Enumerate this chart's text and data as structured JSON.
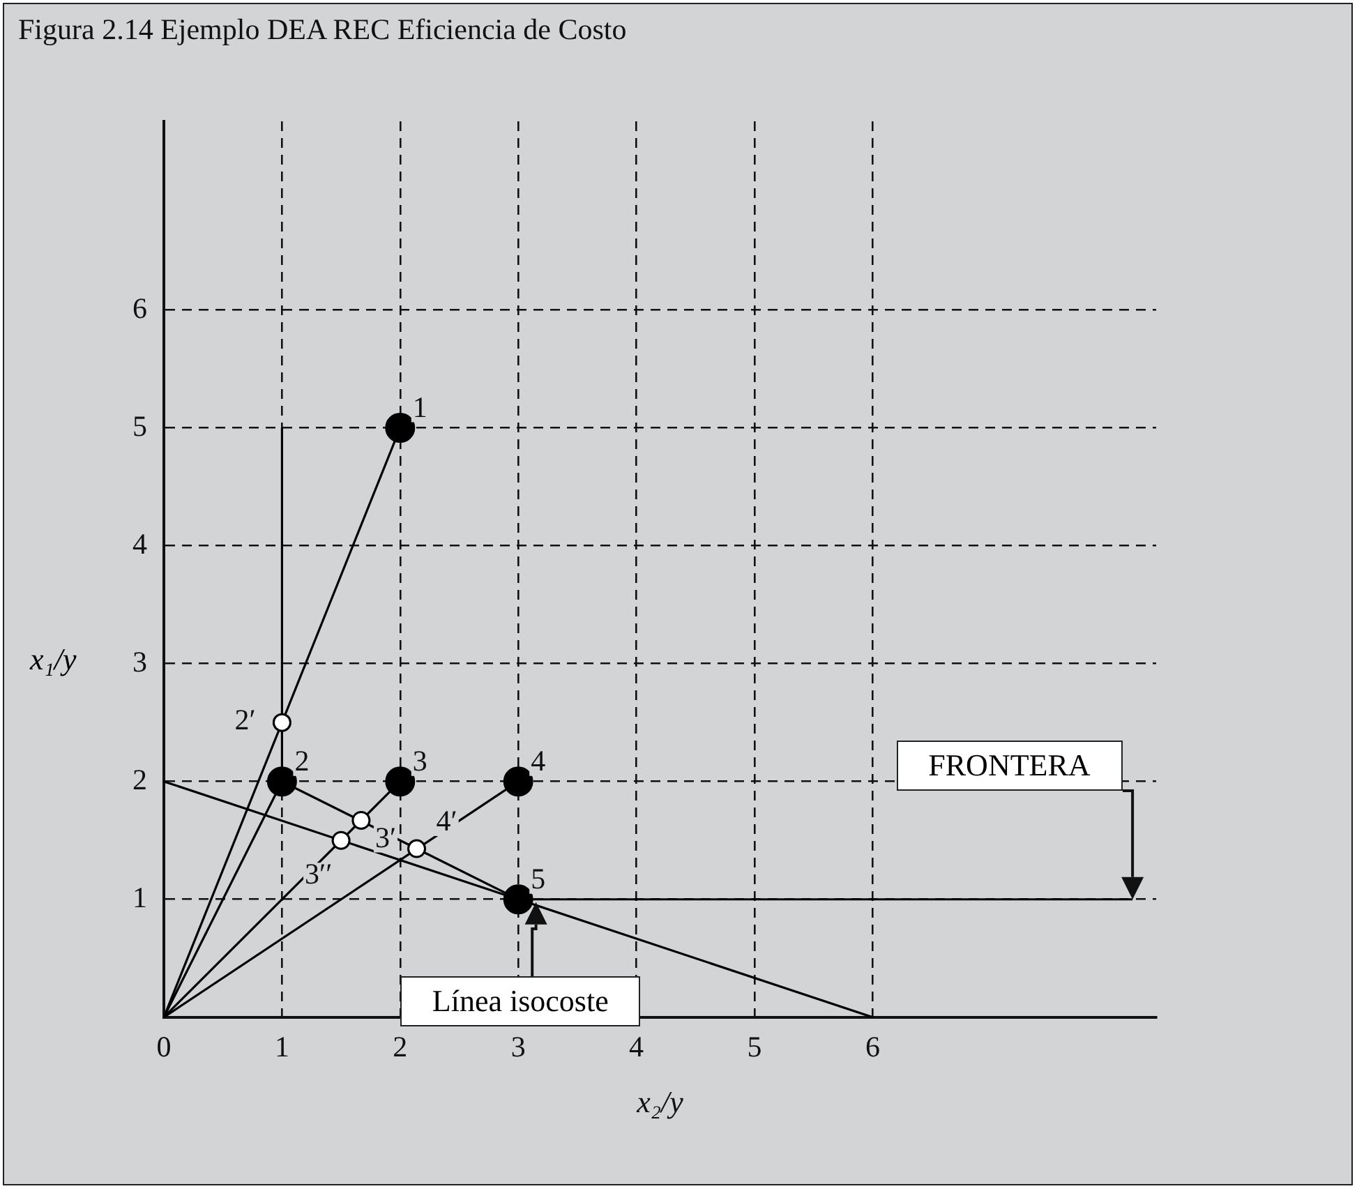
{
  "chart_data": {
    "type": "line",
    "title": "Figura 2.14 Ejemplo DEA REC Eficiencia de Costo",
    "xlabel": "x₂/y",
    "ylabel": "x₁/y",
    "xlim": [
      0,
      8.4
    ],
    "ylim": [
      0,
      7.6
    ],
    "xticks": [
      0,
      1,
      2,
      3,
      4,
      5,
      6
    ],
    "yticks": [
      1,
      2,
      3,
      4,
      5,
      6
    ],
    "grid": true,
    "legend": false,
    "line_style": "solid",
    "series": [
      {
        "color": "#000000",
        "x": [
          0,
          2
        ],
        "values": [
          0,
          5
        ],
        "marker": "none"
      },
      {
        "color": "#000000",
        "x": [
          0,
          1
        ],
        "values": [
          0,
          2
        ],
        "marker": "none"
      },
      {
        "color": "#000000",
        "x": [
          0,
          2
        ],
        "values": [
          0,
          2
        ],
        "marker": "none"
      },
      {
        "color": "#000000",
        "x": [
          0,
          3
        ],
        "values": [
          0,
          2
        ],
        "marker": "none"
      },
      {
        "color": "#000000",
        "x": [
          1,
          1,
          3,
          8.2
        ],
        "values": [
          5,
          2,
          1,
          1
        ],
        "marker": "none"
      },
      {
        "color": "#000000",
        "x": [
          0,
          6
        ],
        "values": [
          2,
          0
        ],
        "marker": "none"
      },
      {
        "type": "scatter",
        "color": "#000000",
        "x": [
          2,
          1,
          2,
          3,
          3
        ],
        "values": [
          5,
          2,
          2,
          2,
          1
        ],
        "marker": "circle"
      },
      {
        "type": "scatter",
        "color": "#ffffff",
        "x": [
          1,
          1.67,
          1.5,
          2.14
        ],
        "values": [
          2.5,
          1.67,
          1.5,
          1.43
        ],
        "marker": "circle"
      }
    ],
    "annotations": [
      {
        "text": "1",
        "x": 2,
        "y": 5
      },
      {
        "text": "2",
        "x": 1,
        "y": 2
      },
      {
        "text": "3",
        "x": 2,
        "y": 2
      },
      {
        "text": "4",
        "x": 3,
        "y": 2
      },
      {
        "text": "5",
        "x": 3,
        "y": 1
      },
      {
        "text": "2′",
        "x": 1,
        "y": 2.5
      },
      {
        "text": "3′",
        "x": 1.67,
        "y": 1.67
      },
      {
        "text": "3′′",
        "x": 1.5,
        "y": 1.5
      },
      {
        "text": "4′",
        "x": 2.14,
        "y": 1.43
      },
      "FRONTERA",
      "Línea isocoste"
    ]
  }
}
